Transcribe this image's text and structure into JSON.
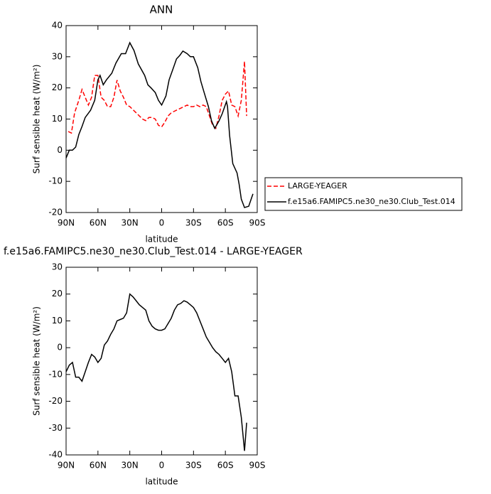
{
  "chart_data": [
    {
      "type": "line",
      "title": "ANN",
      "xlabel": "latitude",
      "ylabel": "Surf sensible heat (W/m²)",
      "xlim": [
        90,
        -90
      ],
      "ylim": [
        -20,
        40
      ],
      "xticks": [
        {
          "value": 90,
          "label": "90N"
        },
        {
          "value": 60,
          "label": "60N"
        },
        {
          "value": 30,
          "label": "30N"
        },
        0,
        {
          "value": -30,
          "label": "30S"
        },
        {
          "value": -60,
          "label": "60S"
        },
        {
          "value": -90,
          "label": "90S"
        }
      ],
      "yticks": [
        -20,
        -10,
        0,
        10,
        20,
        30,
        40
      ],
      "legend": "outside-right",
      "series": [
        {
          "name": "LARGE-YEAGER",
          "color": "#ff0000",
          "dashed": true,
          "x": [
            88,
            85,
            82,
            78,
            75,
            72,
            69,
            66,
            63,
            60,
            57,
            54,
            51,
            48,
            45,
            42,
            39,
            36,
            33,
            30,
            27,
            24,
            21,
            18,
            15,
            12,
            9,
            6,
            3,
            0,
            -3,
            -6,
            -9,
            -12,
            -15,
            -18,
            -21,
            -24,
            -27,
            -30,
            -33,
            -36,
            -39,
            -42,
            -45,
            -48,
            -51,
            -54,
            -57,
            -60,
            -63,
            -66,
            -69,
            -72,
            -75,
            -78,
            -80
          ],
          "values": [
            6,
            5.5,
            12,
            16,
            19.5,
            17,
            14.5,
            17,
            24,
            24,
            17,
            16,
            14,
            14,
            17,
            22.5,
            19,
            17,
            14.5,
            14,
            13,
            12,
            11,
            10,
            9.5,
            10.5,
            10.5,
            10,
            8,
            7.5,
            9,
            11,
            12,
            12.5,
            13,
            13.5,
            14,
            14.5,
            14,
            14,
            14.5,
            14,
            14.5,
            14,
            11,
            8,
            7,
            11,
            16,
            18,
            19,
            14.5,
            14,
            11,
            16,
            28.5,
            11
          ]
        },
        {
          "name": "f.e15a6.FAMIPC5.ne30_ne30.Club_Test.014",
          "color": "#000000",
          "dashed": false,
          "x": [
            90,
            87,
            84,
            81,
            78,
            75,
            72,
            67,
            63,
            60,
            58,
            55,
            52,
            47,
            43,
            38,
            34,
            30,
            26,
            22,
            16,
            13,
            10,
            6,
            3,
            0,
            -4,
            -7,
            -10,
            -14,
            -17,
            -20,
            -24,
            -27,
            -30,
            -34,
            -37,
            -40,
            -44,
            -47,
            -50,
            -54,
            -57,
            -61,
            -62,
            -64,
            -67,
            -71,
            -73,
            -75,
            -78,
            -82,
            -86
          ],
          "values": [
            -2.5,
            0,
            0,
            1,
            5,
            7.6,
            10.5,
            12.8,
            16,
            22.6,
            24,
            21,
            22.6,
            24.7,
            28,
            31,
            31,
            34.5,
            32,
            27.7,
            24,
            21,
            20,
            18.5,
            16,
            14.5,
            17.4,
            22.6,
            25.4,
            29.3,
            30.4,
            31.8,
            31,
            30,
            30,
            26.5,
            22,
            18.5,
            14,
            9.4,
            7,
            9.4,
            11.7,
            15.6,
            14,
            4.8,
            -4.3,
            -7.3,
            -11,
            -15.7,
            -18.4,
            -18,
            -14
          ]
        }
      ]
    },
    {
      "type": "line",
      "title": "f.e15a6.FAMIPC5.ne30_ne30.Club_Test.014 - LARGE-YEAGER",
      "xlabel": "latitude",
      "ylabel": "Surf sensible heat (W/m²)",
      "xlim": [
        90,
        -90
      ],
      "ylim": [
        -40,
        30
      ],
      "xticks": [
        {
          "value": 90,
          "label": "90N"
        },
        {
          "value": 60,
          "label": "60N"
        },
        {
          "value": 30,
          "label": "30N"
        },
        0,
        {
          "value": -30,
          "label": "30S"
        },
        {
          "value": -60,
          "label": "60S"
        },
        {
          "value": -90,
          "label": "90S"
        }
      ],
      "yticks": [
        -40,
        -30,
        -20,
        -10,
        0,
        10,
        20,
        30
      ],
      "series": [
        {
          "color": "#000000",
          "dashed": false,
          "x": [
            90,
            87,
            84,
            81,
            78,
            75,
            72,
            69,
            66,
            63,
            60,
            57,
            54,
            51,
            48,
            45,
            42,
            39,
            36,
            33,
            30,
            27,
            24,
            21,
            18,
            15,
            12,
            9,
            6,
            3,
            0,
            -3,
            -6,
            -9,
            -12,
            -15,
            -18,
            -21,
            -24,
            -27,
            -30,
            -33,
            -36,
            -39,
            -42,
            -45,
            -48,
            -51,
            -54,
            -57,
            -60,
            -63,
            -66,
            -69,
            -72,
            -75,
            -78,
            -80
          ],
          "values": [
            -9,
            -6.5,
            -5.5,
            -11,
            -11,
            -12.5,
            -9,
            -5.5,
            -2.5,
            -3.5,
            -5.5,
            -4,
            1,
            2.5,
            5,
            7,
            10,
            10.5,
            11,
            13,
            20,
            19,
            17.5,
            16,
            15,
            14,
            10,
            8,
            7,
            6.5,
            6.5,
            7,
            9,
            11,
            14,
            16,
            16.5,
            17.5,
            17,
            16,
            15,
            13,
            10,
            7,
            4,
            2,
            0,
            -1.5,
            -2.5,
            -4,
            -5.5,
            -4,
            -9,
            -18,
            -18,
            -26,
            -38.5,
            -28
          ]
        }
      ]
    }
  ]
}
